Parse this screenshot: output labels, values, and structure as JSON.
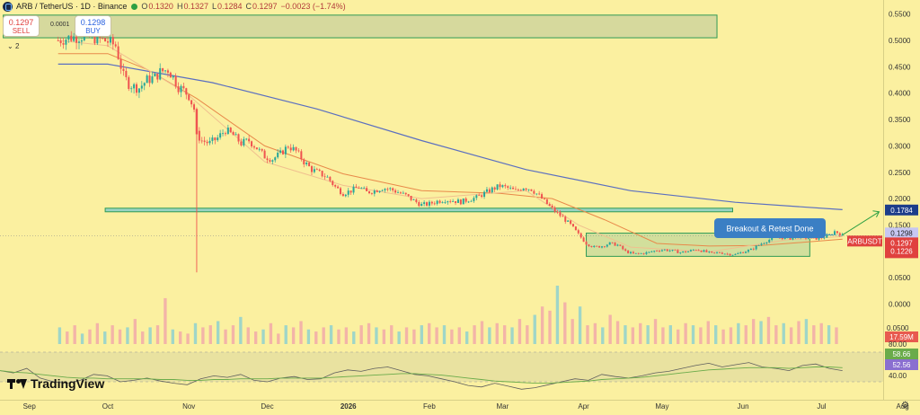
{
  "header": {
    "symbol": "ARB / TetherUS · 1D · Binance",
    "o_label": "O",
    "o_value": "0.1320",
    "h_label": "H",
    "h_value": "0.1327",
    "l_label": "L",
    "l_value": "0.1284",
    "c_label": "C",
    "c_value": "0.1297",
    "change": "−0.0023 (−1.74%)"
  },
  "trade": {
    "sell_price": "0.1297",
    "sell_label": "SELL",
    "buy_price": "0.1298",
    "buy_label": "BUY",
    "spread": "0.0001"
  },
  "indicator_toggle": "2",
  "brand": "TradingView",
  "colors": {
    "background": "#fbf0a0",
    "candle_up": "#26a69a",
    "candle_down": "#ef5350",
    "ma_slow": "#5b6fc0",
    "ma_mid": "#e8894a",
    "ma_fast": "#f0c08f",
    "zone_border": "#2f9a55",
    "support_line": "#2f9a55",
    "rsi_line": "#5e5e5e",
    "rsi_ma": "#6aab4a",
    "callout": "#3b7fc4"
  },
  "chart_data": [
    {
      "type": "candlestick",
      "title": "ARB / TetherUS · 1D · Binance",
      "x_ticks": [
        "Sep",
        "Oct",
        "Nov",
        "Dec",
        "2026",
        "Feb",
        "Mar",
        "Apr",
        "May",
        "Jun",
        "Jul",
        "Aug"
      ],
      "y_ticks": [
        "0.5500",
        "0.5000",
        "0.4500",
        "0.4000",
        "0.3500",
        "0.3000",
        "0.2500",
        "0.2000",
        "0.1500",
        "0.1000",
        "0.0500",
        "0.0000"
      ],
      "ylim": [
        0.0,
        0.555
      ],
      "close_series": [
        [
          -19,
          0.5
        ],
        [
          -15,
          0.505
        ],
        [
          -10,
          0.508
        ],
        [
          -5,
          0.505
        ],
        [
          0,
          0.498
        ],
        [
          3,
          0.49
        ],
        [
          6,
          0.432
        ],
        [
          8,
          0.418
        ],
        [
          10,
          0.412
        ],
        [
          12,
          0.41
        ],
        [
          15,
          0.425
        ],
        [
          18,
          0.43
        ],
        [
          20,
          0.44
        ],
        [
          23,
          0.445
        ],
        [
          25,
          0.43
        ],
        [
          27,
          0.412
        ],
        [
          29,
          0.405
        ],
        [
          31,
          0.395
        ],
        [
          33,
          0.37
        ],
        [
          34,
          0.322
        ],
        [
          36,
          0.31
        ],
        [
          39,
          0.305
        ],
        [
          42,
          0.315
        ],
        [
          45,
          0.33
        ],
        [
          48,
          0.32
        ],
        [
          51,
          0.305
        ],
        [
          54,
          0.31
        ],
        [
          57,
          0.296
        ],
        [
          60,
          0.28
        ],
        [
          63,
          0.275
        ],
        [
          66,
          0.285
        ],
        [
          69,
          0.3
        ],
        [
          72,
          0.29
        ],
        [
          75,
          0.27
        ],
        [
          78,
          0.255
        ],
        [
          81,
          0.248
        ],
        [
          84,
          0.24
        ],
        [
          87,
          0.222
        ],
        [
          90,
          0.21
        ],
        [
          93,
          0.215
        ],
        [
          96,
          0.222
        ],
        [
          99,
          0.212
        ],
        [
          102,
          0.215
        ],
        [
          105,
          0.22
        ],
        [
          108,
          0.218
        ],
        [
          111,
          0.212
        ],
        [
          114,
          0.206
        ],
        [
          117,
          0.196
        ],
        [
          120,
          0.188
        ],
        [
          123,
          0.19
        ],
        [
          126,
          0.195
        ],
        [
          129,
          0.198
        ],
        [
          132,
          0.196
        ],
        [
          135,
          0.194
        ],
        [
          138,
          0.198
        ],
        [
          141,
          0.202
        ],
        [
          144,
          0.21
        ],
        [
          147,
          0.218
        ],
        [
          150,
          0.224
        ],
        [
          153,
          0.22
        ],
        [
          156,
          0.214
        ],
        [
          159,
          0.222
        ],
        [
          162,
          0.218
        ],
        [
          165,
          0.205
        ],
        [
          168,
          0.19
        ],
        [
          171,
          0.176
        ],
        [
          174,
          0.164
        ],
        [
          177,
          0.15
        ],
        [
          180,
          0.132
        ],
        [
          183,
          0.115
        ],
        [
          186,
          0.108
        ],
        [
          189,
          0.11
        ],
        [
          192,
          0.115
        ],
        [
          195,
          0.112
        ],
        [
          198,
          0.1
        ],
        [
          201,
          0.095
        ],
        [
          204,
          0.096
        ],
        [
          207,
          0.098
        ],
        [
          210,
          0.102
        ],
        [
          213,
          0.103
        ],
        [
          216,
          0.101
        ],
        [
          219,
          0.098
        ],
        [
          222,
          0.1
        ],
        [
          225,
          0.104
        ],
        [
          228,
          0.1
        ],
        [
          231,
          0.096
        ],
        [
          234,
          0.098
        ],
        [
          237,
          0.095
        ],
        [
          240,
          0.094
        ],
        [
          243,
          0.099
        ],
        [
          246,
          0.103
        ],
        [
          249,
          0.112
        ],
        [
          252,
          0.12
        ],
        [
          255,
          0.126
        ],
        [
          258,
          0.126
        ],
        [
          261,
          0.125
        ],
        [
          264,
          0.128
        ],
        [
          267,
          0.126
        ],
        [
          270,
          0.124
        ],
        [
          273,
          0.126
        ],
        [
          276,
          0.13
        ],
        [
          278,
          0.138
        ],
        [
          280,
          0.133
        ],
        [
          281,
          0.13
        ]
      ],
      "spike_candles": [
        {
          "x": 34,
          "open": 0.37,
          "high": 0.37,
          "low": 0.06,
          "close": 0.322
        }
      ],
      "ma_slow": [
        [
          -19,
          0.455
        ],
        [
          0,
          0.455
        ],
        [
          40,
          0.42
        ],
        [
          80,
          0.37
        ],
        [
          120,
          0.31
        ],
        [
          160,
          0.255
        ],
        [
          200,
          0.215
        ],
        [
          240,
          0.193
        ],
        [
          281,
          0.179
        ]
      ],
      "ma_mid": [
        [
          -19,
          0.475
        ],
        [
          0,
          0.475
        ],
        [
          15,
          0.445
        ],
        [
          34,
          0.39
        ],
        [
          60,
          0.3
        ],
        [
          90,
          0.247
        ],
        [
          120,
          0.215
        ],
        [
          150,
          0.21
        ],
        [
          170,
          0.2
        ],
        [
          190,
          0.16
        ],
        [
          210,
          0.115
        ],
        [
          230,
          0.11
        ],
        [
          250,
          0.111
        ],
        [
          281,
          0.123
        ]
      ],
      "ma_fast": [
        [
          -19,
          0.5
        ],
        [
          0,
          0.49
        ],
        [
          30,
          0.4
        ],
        [
          60,
          0.27
        ],
        [
          90,
          0.225
        ],
        [
          120,
          0.2
        ],
        [
          160,
          0.215
        ],
        [
          180,
          0.15
        ],
        [
          200,
          0.108
        ],
        [
          230,
          0.099
        ],
        [
          260,
          0.122
        ],
        [
          281,
          0.128
        ]
      ],
      "volume": [
        8,
        6,
        9,
        5,
        7,
        10,
        6,
        9,
        7,
        8,
        12,
        6,
        8,
        9,
        22,
        7,
        6,
        5,
        10,
        8,
        9,
        11,
        7,
        9,
        13,
        8,
        6,
        7,
        10,
        5,
        9,
        8,
        11,
        7,
        6,
        8,
        9,
        7,
        8,
        6,
        9,
        10,
        8,
        7,
        9,
        6,
        8,
        7,
        9,
        10,
        8,
        9,
        7,
        8,
        6,
        9,
        11,
        8,
        10,
        9,
        8,
        12,
        9,
        14,
        18,
        16,
        28,
        20,
        12,
        18,
        9,
        10,
        8,
        14,
        11,
        9,
        8,
        10,
        9,
        12,
        8,
        9,
        7,
        10,
        9,
        8,
        11,
        9,
        7,
        8,
        10,
        9,
        12,
        11,
        13,
        9,
        10,
        8,
        11,
        12,
        9,
        10,
        9,
        8
      ],
      "rsi": [
        55,
        52,
        58,
        45,
        40,
        38,
        42,
        50,
        48,
        40,
        42,
        45,
        41,
        38,
        36,
        44,
        48,
        46,
        50,
        42,
        40,
        45,
        47,
        43,
        44,
        52,
        56,
        54,
        58,
        60,
        55,
        50,
        48,
        44,
        40,
        35,
        33,
        38,
        34,
        30,
        32,
        36,
        40,
        44,
        42,
        50,
        47,
        45,
        48,
        52,
        54,
        58,
        62,
        65,
        60,
        63,
        66,
        60,
        58,
        55,
        62,
        64,
        58,
        55
      ],
      "rsi_ma": [
        55,
        53,
        52,
        50,
        48,
        46,
        45,
        45,
        44,
        44,
        44,
        44,
        43,
        43,
        42,
        42,
        43,
        43,
        44,
        44,
        44,
        45,
        45,
        45,
        45,
        46,
        47,
        48,
        49,
        50,
        51,
        51,
        50,
        49,
        47,
        45,
        43,
        41,
        40,
        39,
        38,
        38,
        39,
        40,
        41,
        43,
        44,
        45,
        46,
        48,
        50,
        52,
        54,
        56,
        57,
        58,
        59,
        59,
        59,
        58,
        59,
        60,
        60,
        59
      ],
      "rsi_axis_ticks": [
        "80.00",
        "40.00"
      ],
      "support_level": 0.1784,
      "resistance_zone": [
        0.505,
        0.548
      ],
      "accumulation_zone": [
        0.0905,
        0.1345
      ],
      "price_labels": {
        "resistance": "0.1784",
        "ask": "0.1298",
        "last": "0.1297",
        "countdown": "11:22:57",
        "bid": "0.1226",
        "symbol": "ARBUSDT"
      },
      "volume_label": "17.59M",
      "volume_axis_label": "0.0500",
      "rsi_labels": [
        "58.66",
        "52.56"
      ],
      "annotation": "Breakout & Retest Done"
    }
  ]
}
